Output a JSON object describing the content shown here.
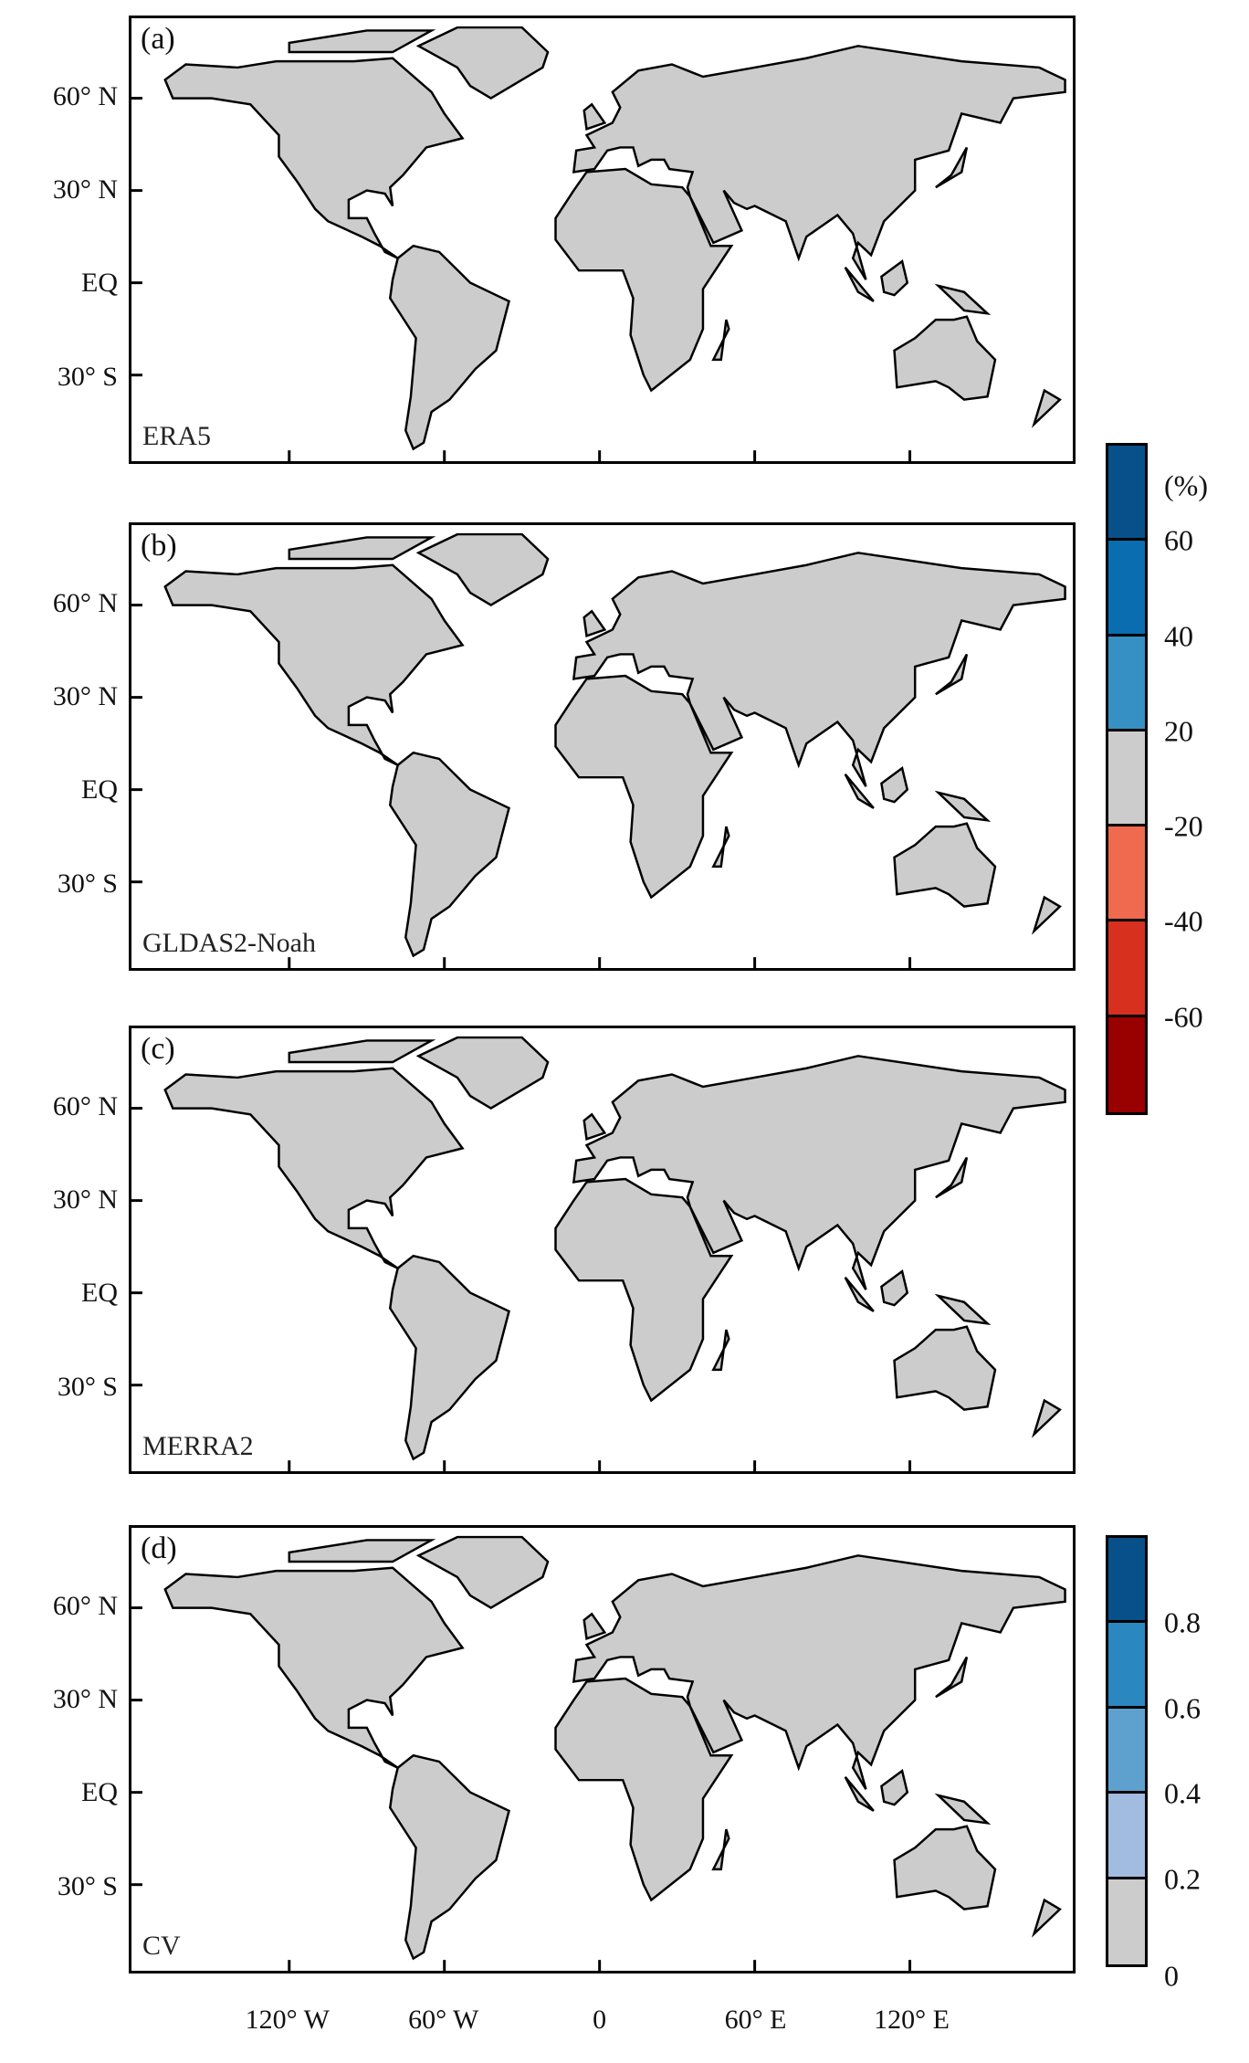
{
  "chart_data": {
    "type": "heatmap",
    "description_type": "global map panels",
    "panels": [
      {
        "label": "(a)",
        "name": "ERA5"
      },
      {
        "label": "(b)",
        "name": "GLDAS2-Noah"
      },
      {
        "label": "(c)",
        "name": "MERRA2"
      },
      {
        "label": "(d)",
        "name": "CV"
      }
    ],
    "y_ticks": [
      {
        "lat": 60,
        "label": "60° N"
      },
      {
        "lat": 30,
        "label": "30° N"
      },
      {
        "lat": 0,
        "label": "EQ"
      },
      {
        "lat": -30,
        "label": "30° S"
      }
    ],
    "x_ticks": [
      {
        "lon": -120,
        "label": "120° W"
      },
      {
        "lon": -60,
        "label": "60° W"
      },
      {
        "lon": 0,
        "label": "0"
      },
      {
        "lon": 60,
        "label": "60° E"
      },
      {
        "lon": 120,
        "label": "120° E"
      }
    ],
    "lon_range": [
      -180,
      180
    ],
    "lat_range": [
      -58,
      86
    ],
    "colorbar_relative": {
      "unit": "(%)",
      "colors": [
        "#08508a",
        "#0a6db0",
        "#3690c3",
        "#cccccc",
        "#ef6a4f",
        "#d7301f",
        "#990000"
      ],
      "boundaries": [
        "60",
        "40",
        "20",
        "-20",
        "-40",
        "-60"
      ]
    },
    "colorbar_cv": {
      "colors": [
        "#08508a",
        "#2b87c0",
        "#5ea1cf",
        "#a2bbe0",
        "#cccccc"
      ],
      "boundaries": [
        "0.8",
        "0.6",
        "0.4",
        "0.2"
      ],
      "min": "0"
    }
  }
}
